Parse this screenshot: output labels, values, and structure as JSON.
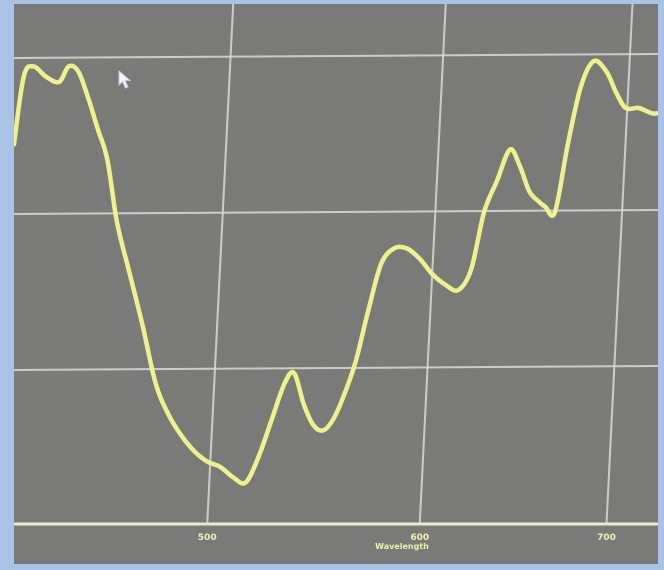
{
  "chart_data": {
    "type": "line",
    "title": "",
    "xlabel": "Wavelength",
    "ylabel": "",
    "xlim": [
      0,
      100
    ],
    "ylim": [
      0,
      100
    ],
    "x_ticks": [
      {
        "value": 30,
        "label": "500"
      },
      {
        "value": 63,
        "label": "600"
      },
      {
        "value": 92,
        "label": "700"
      }
    ],
    "y_gridlines": [
      30,
      60,
      90
    ],
    "grid": true,
    "series": [
      {
        "name": "",
        "color": "#eef28e",
        "x": [
          0,
          1.5,
          3,
          5,
          7,
          8.5,
          10,
          11.5,
          13,
          14.5,
          16,
          18,
          20,
          22,
          24,
          26,
          28,
          30,
          32,
          34,
          36,
          38,
          40,
          42,
          43.5,
          45,
          46.5,
          48,
          49.5,
          51,
          53,
          55,
          57,
          59,
          61,
          63,
          65,
          67,
          69,
          71,
          73,
          75,
          77,
          78.5,
          80,
          81.5,
          82.5,
          84,
          86,
          88,
          90,
          92,
          93.5,
          95,
          97,
          99,
          100
        ],
        "y": [
          73,
          86,
          88,
          86,
          85,
          88,
          87,
          82,
          76,
          70,
          58,
          48,
          38,
          27,
          21,
          17,
          14,
          12,
          11,
          9,
          8,
          13,
          20,
          27,
          29,
          23,
          19,
          18,
          20,
          24,
          31,
          41,
          50,
          53,
          53,
          51,
          48,
          46,
          45,
          49,
          60,
          66,
          72,
          69,
          64,
          62,
          61,
          60,
          73,
          84,
          89,
          87,
          83,
          80,
          80,
          79,
          79
        ]
      }
    ]
  }
}
